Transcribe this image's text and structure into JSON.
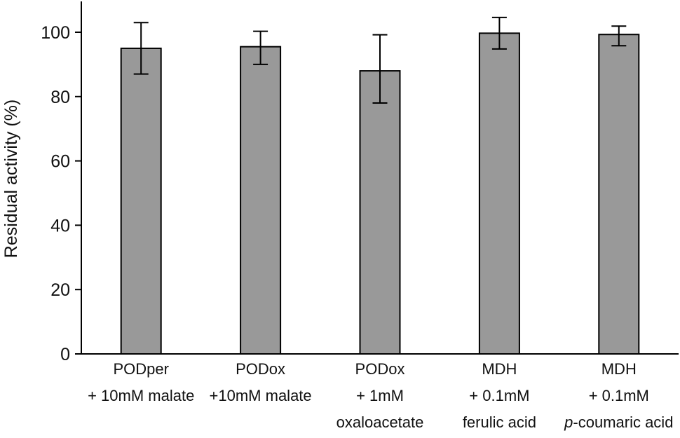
{
  "chart_data": {
    "type": "bar",
    "title": "",
    "xlabel": "",
    "ylabel": "Residual activity (%)",
    "ylim": [
      0,
      110
    ],
    "yticks": [
      0,
      20,
      40,
      60,
      80,
      100
    ],
    "grid": false,
    "bar_color": "#999999",
    "categories": [
      {
        "lines": [
          "PODper",
          "+ 10mM malate"
        ]
      },
      {
        "lines": [
          "PODox",
          "+10mM malate"
        ]
      },
      {
        "lines": [
          "PODox",
          "+ 1mM",
          "oxaloacetate"
        ]
      },
      {
        "lines": [
          "MDH",
          "+ 0.1mM",
          "ferulic acid"
        ]
      },
      {
        "lines": [
          "MDH",
          "+ 0.1mM",
          "p-coumaric acid"
        ],
        "italic_prefix": "p"
      }
    ],
    "series": [
      {
        "values": [
          95,
          95.5,
          88,
          99.7,
          99.3
        ],
        "error_low": [
          87,
          90,
          78,
          94.8,
          95.8
        ],
        "error_high": [
          103,
          100.3,
          99.2,
          104.6,
          101.9
        ]
      }
    ]
  }
}
